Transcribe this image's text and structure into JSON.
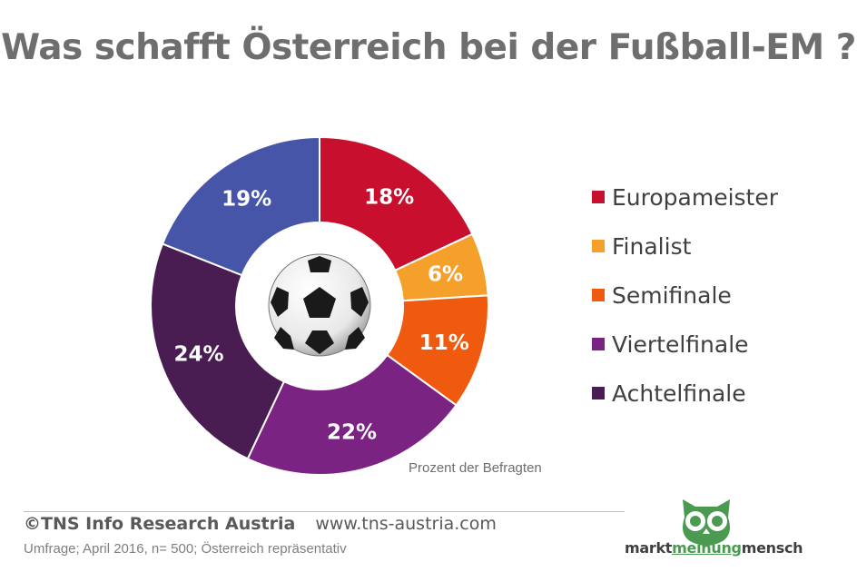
{
  "title": "Was schafft Österreich bei der Fußball-EM ?",
  "chart_data": {
    "type": "pie",
    "variant": "donut",
    "categories": [
      "Europameister",
      "Finalist",
      "Semifinale",
      "Viertelfinale",
      "Achtelfinale",
      ""
    ],
    "values": [
      18,
      6,
      11,
      22,
      24,
      19
    ],
    "labels": [
      "18%",
      "6%",
      "11%",
      "22%",
      "24%",
      "19%"
    ],
    "colors": [
      "#c8102e",
      "#f5a02a",
      "#ef5a0e",
      "#7b2382",
      "#4a1d52",
      "#4655a8"
    ],
    "legend": [
      "Europameister",
      "Finalist",
      "Semifinale",
      "Viertelfinale",
      "Achtelfinale"
    ],
    "legend_position": "right",
    "annotation": "Prozent der Befragten",
    "center_image": "soccer-ball"
  },
  "footer": {
    "org": "©TNS Info Research Austria",
    "url": "www.tns-austria.com",
    "survey": "Umfrage; April 2016, n= 500; Österreich repräsentativ"
  },
  "brand": {
    "part1": "markt",
    "part2": "meinung",
    "part3": "mensch",
    "color": "#4a9a52"
  }
}
